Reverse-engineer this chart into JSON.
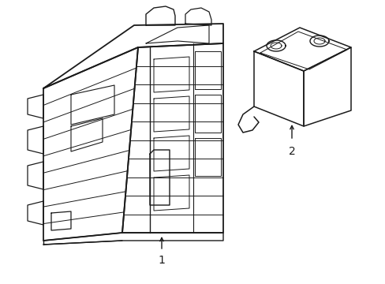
{
  "background_color": "#ffffff",
  "line_color": "#1a1a1a",
  "line_width": 1.0,
  "fig_width": 4.89,
  "fig_height": 3.6,
  "dpi": 100,
  "label1_text": "1",
  "label2_text": "2"
}
